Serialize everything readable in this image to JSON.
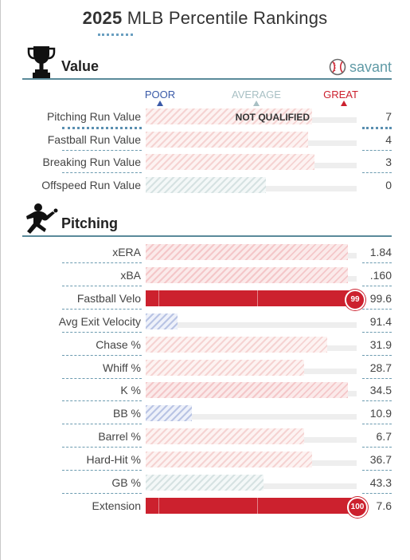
{
  "header": {
    "year": "2025",
    "title_rest": "MLB Percentile Rankings"
  },
  "brand": {
    "name": "savant",
    "icon": "baseball-icon",
    "color": "#5f9aa6"
  },
  "scale": {
    "poor": {
      "label": "POOR",
      "color": "#3a5aa8"
    },
    "average": {
      "label": "AVERAGE",
      "color": "#a8c0c4"
    },
    "great": {
      "label": "GREAT",
      "color": "#cc212e"
    }
  },
  "value_section": {
    "label": "Value",
    "icon": "trophy-icon",
    "rows": [
      {
        "name": "Pitching Run Value",
        "value": "7",
        "not_qualified": "NOT QUALIFIED"
      },
      {
        "name": "Fastball Run Value",
        "value": "4"
      },
      {
        "name": "Breaking Run Value",
        "value": "3"
      },
      {
        "name": "Offspeed Run Value",
        "value": "0"
      }
    ]
  },
  "pitching_section": {
    "label": "Pitching",
    "icon": "pitcher-silhouette-icon",
    "rows": [
      {
        "name": "xERA",
        "value": "1.84"
      },
      {
        "name": "xBA",
        "value": ".160"
      },
      {
        "name": "Fastball Velo",
        "value": "99.6",
        "badge": "99"
      },
      {
        "name": "Avg Exit Velocity",
        "value": "91.4"
      },
      {
        "name": "Chase %",
        "value": "31.9"
      },
      {
        "name": "Whiff %",
        "value": "28.7"
      },
      {
        "name": "K %",
        "value": "34.5"
      },
      {
        "name": "BB %",
        "value": "10.9"
      },
      {
        "name": "Barrel %",
        "value": "6.7"
      },
      {
        "name": "Hard-Hit %",
        "value": "36.7"
      },
      {
        "name": "GB %",
        "value": "43.3"
      },
      {
        "name": "Extension",
        "value": "7.6",
        "badge": "100"
      }
    ]
  },
  "chart_data": {
    "type": "bar",
    "title": "2025 MLB Percentile Rankings",
    "xlim": [
      0,
      100
    ],
    "scale_labels": [
      "POOR",
      "AVERAGE",
      "GREAT"
    ],
    "groups": [
      {
        "name": "Value",
        "categories": [
          "Pitching Run Value",
          "Fastball Run Value",
          "Breaking Run Value",
          "Offspeed Run Value"
        ],
        "percentiles": [
          79,
          77,
          80,
          57
        ],
        "styles": [
          "hatch-pink",
          "hatch-pink",
          "hatch-pink",
          "hatch-grey"
        ],
        "values": [
          "7",
          "4",
          "3",
          "0"
        ]
      },
      {
        "name": "Pitching",
        "categories": [
          "xERA",
          "xBA",
          "Fastball Velo",
          "Avg Exit Velocity",
          "Chase %",
          "Whiff %",
          "K %",
          "BB %",
          "Barrel %",
          "Hard-Hit %",
          "GB %",
          "Extension"
        ],
        "percentiles": [
          96,
          96,
          99,
          15,
          86,
          75,
          96,
          22,
          75,
          79,
          56,
          100
        ],
        "styles": [
          "hatch-red",
          "hatch-red",
          "solid-red",
          "hatch-blue",
          "hatch-pink",
          "hatch-pink",
          "hatch-red",
          "hatch-blue",
          "hatch-pink",
          "hatch-pink",
          "hatch-grey",
          "solid-red"
        ],
        "values": [
          "1.84",
          ".160",
          "99.6",
          "91.4",
          "31.9",
          "28.7",
          "34.5",
          "10.9",
          "6.7",
          "36.7",
          "43.3",
          "7.6"
        ]
      }
    ]
  }
}
